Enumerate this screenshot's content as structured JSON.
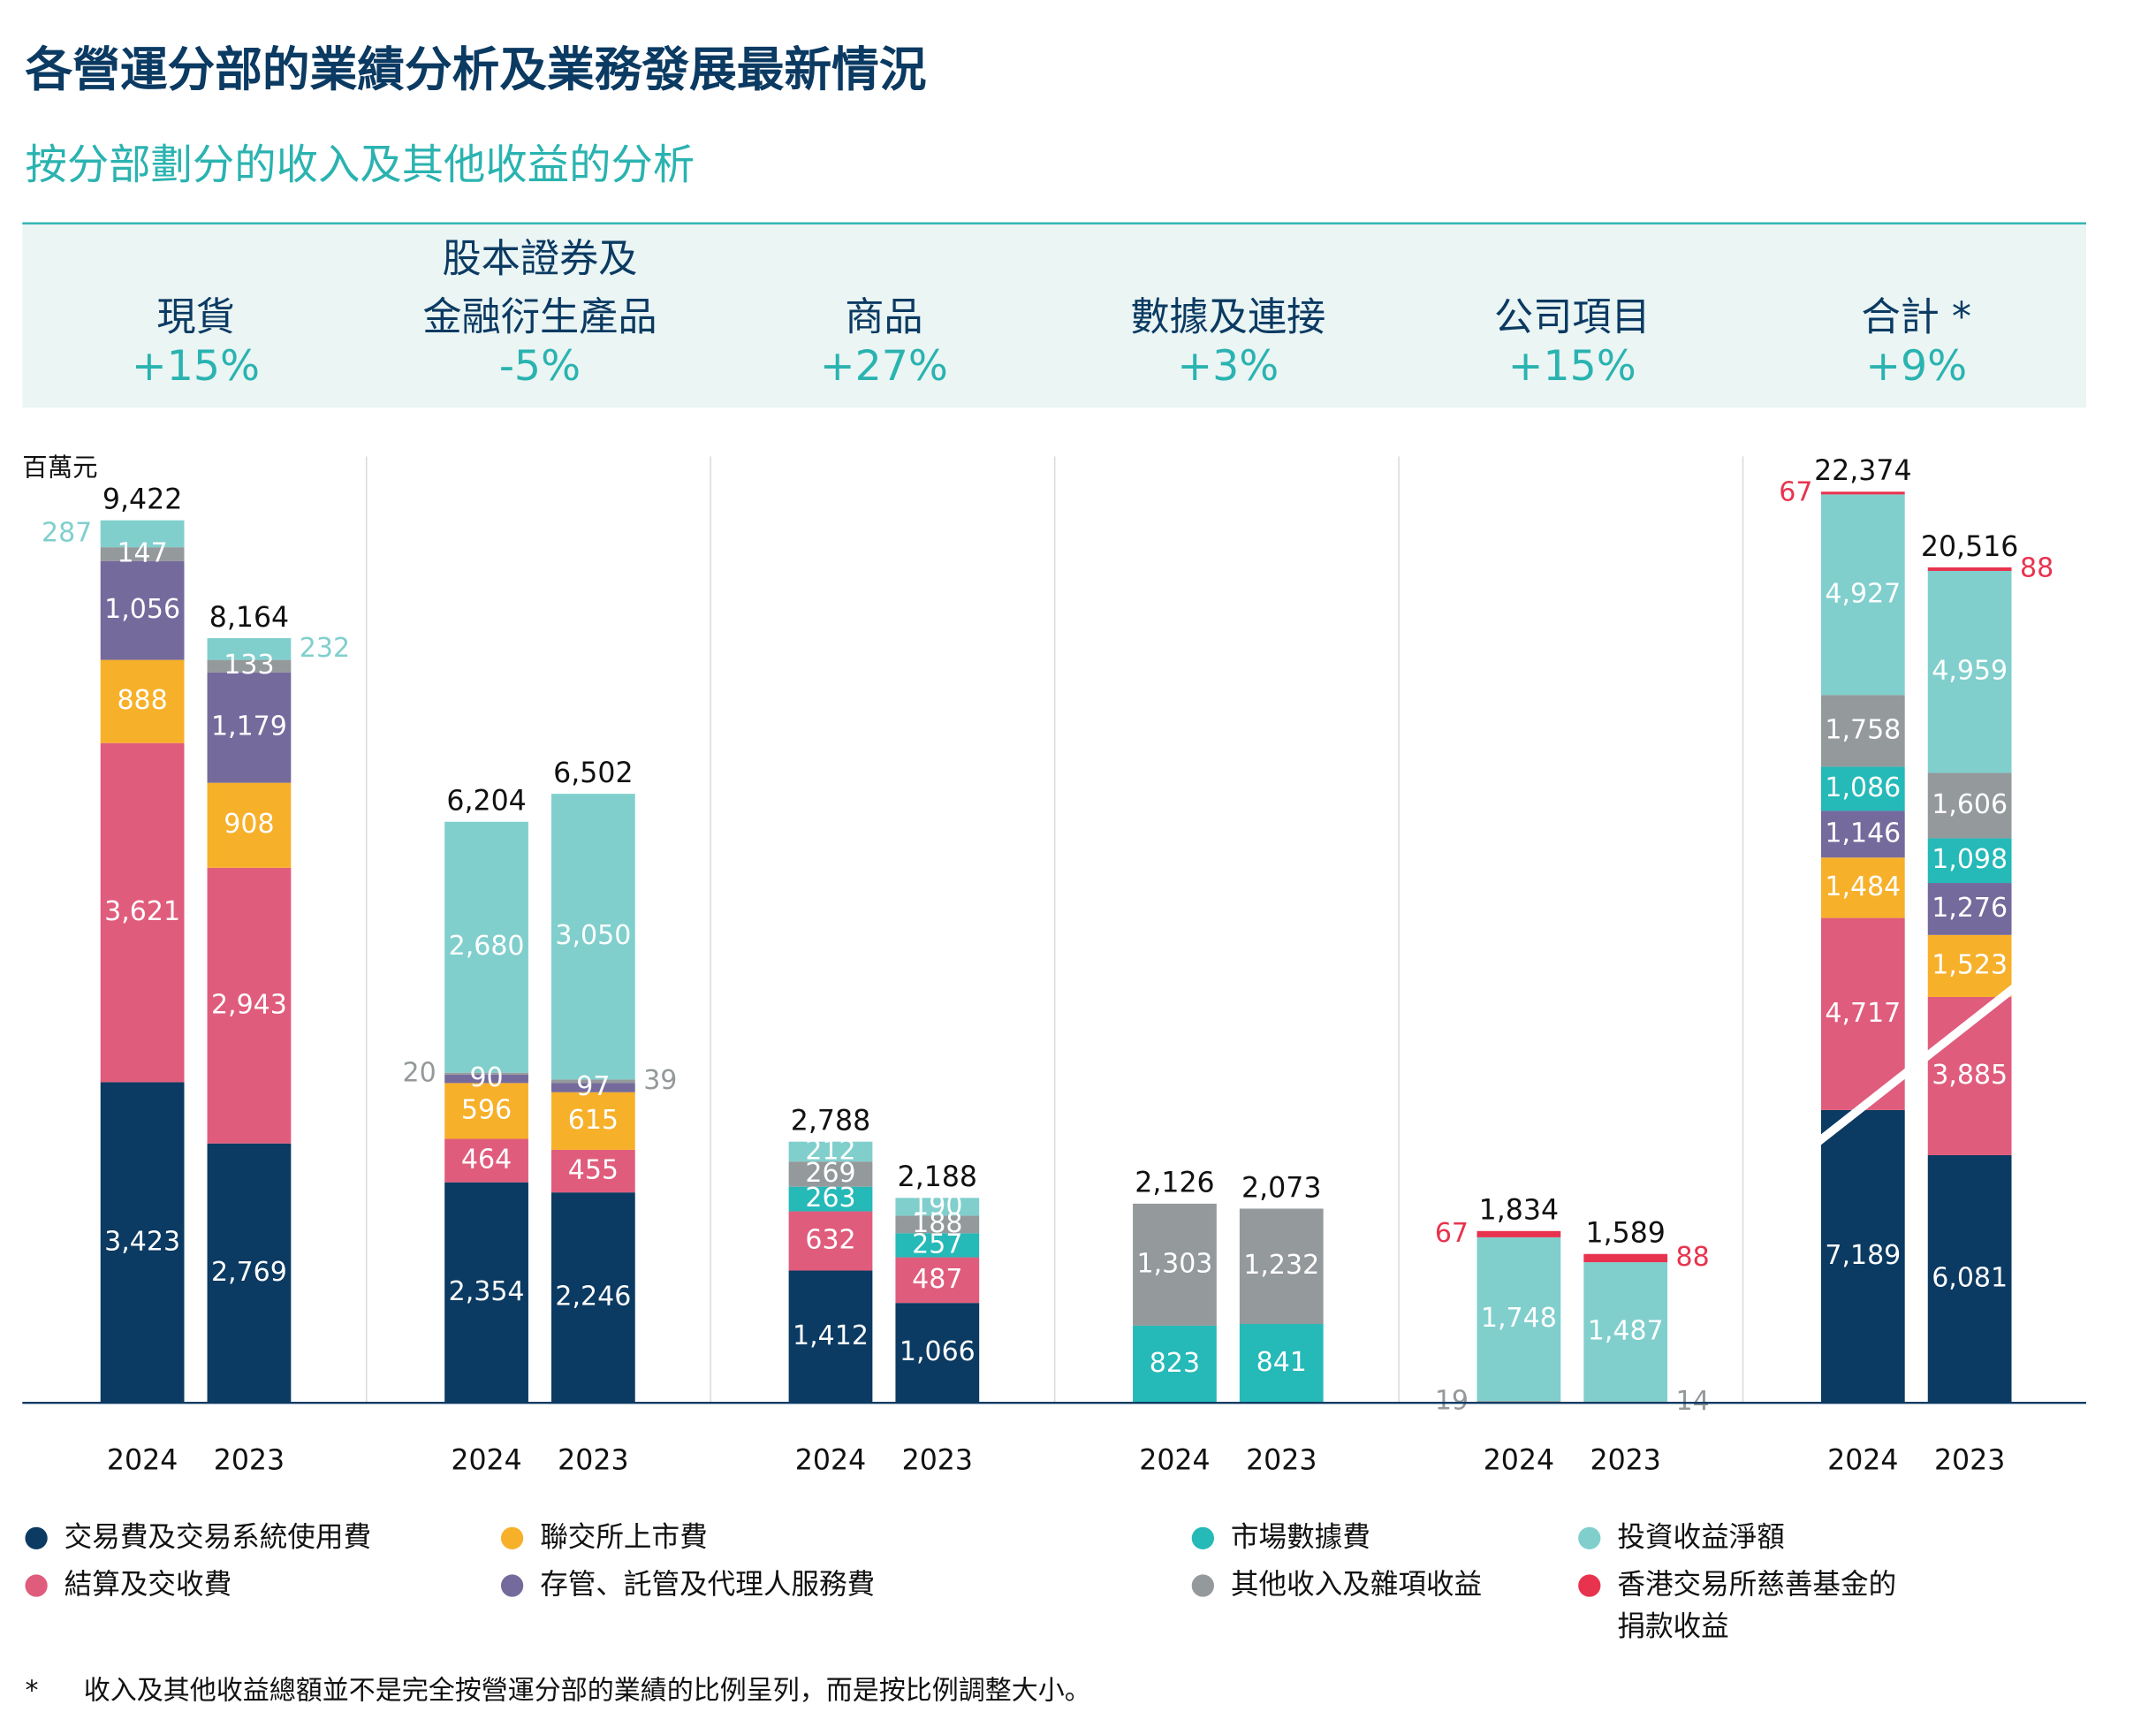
{
  "chart_data": {
    "type": "bar",
    "stacked": true,
    "title": "各營運分部的業績分析及業務發展最新情況",
    "subtitle": "按分部劃分的收入及其他收益的分析",
    "unit": "百萬元",
    "footnote_mark": "*",
    "footnote": "收入及其他收益總額並不是完全按營運分部的業績的比例呈列，而是按比例調整大小。",
    "series": [
      {
        "name": "交易費及交易系統使用費",
        "color": "#0b3a62"
      },
      {
        "name": "結算及交收費",
        "color": "#e05c7c"
      },
      {
        "name": "聯交所上市費",
        "color": "#f7b02a"
      },
      {
        "name": "存管、託管及代理人服務費",
        "color": "#756a9c"
      },
      {
        "name": "市場數據費",
        "color": "#25b9b8"
      },
      {
        "name": "其他收入及雜項收益",
        "color": "#94999b"
      },
      {
        "name": "投資收益淨額",
        "color": "#80cfcd"
      },
      {
        "name": "香港交易所慈善基金的捐款收益",
        "color": "#e8334f"
      }
    ],
    "panels": [
      {
        "title": [
          "現貨"
        ],
        "change": "+15%",
        "categories": [
          "2024",
          "2023"
        ],
        "ylim": [
          0,
          10000
        ],
        "totals": [
          9422,
          8164
        ],
        "total_labels": [
          "9,422",
          "8,164"
        ],
        "series": [
          {
            "values": [
              3423,
              2769
            ],
            "value_labels": [
              "3,423",
              "2,769"
            ]
          },
          {
            "values": [
              3621,
              2943
            ],
            "value_labels": [
              "3,621",
              "2,943"
            ]
          },
          {
            "values": [
              888,
              908
            ],
            "value_labels": [
              "888",
              "908"
            ]
          },
          {
            "values": [
              1056,
              1179
            ],
            "value_labels": [
              "1,056",
              "1,179"
            ]
          },
          {
            "values": [
              null,
              null
            ],
            "value_labels": [
              null,
              null
            ]
          },
          {
            "values": [
              147,
              133
            ],
            "value_labels": [
              "147",
              "133"
            ]
          },
          {
            "values": [
              287,
              232
            ],
            "value_labels": [
              "287",
              "232"
            ]
          },
          {
            "values": [
              null,
              null
            ],
            "value_labels": [
              null,
              null
            ]
          }
        ]
      },
      {
        "title": [
          "股本證券及",
          "金融衍生產品"
        ],
        "change": "-5%",
        "categories": [
          "2024",
          "2023"
        ],
        "ylim": [
          0,
          10000
        ],
        "totals": [
          6204,
          6502
        ],
        "total_labels": [
          "6,204",
          "6,502"
        ],
        "series": [
          {
            "values": [
              2354,
              2246
            ],
            "value_labels": [
              "2,354",
              "2,246"
            ]
          },
          {
            "values": [
              464,
              455
            ],
            "value_labels": [
              "464",
              "455"
            ]
          },
          {
            "values": [
              596,
              615
            ],
            "value_labels": [
              "596",
              "615"
            ]
          },
          {
            "values": [
              90,
              97
            ],
            "value_labels": [
              "90",
              "97"
            ]
          },
          {
            "values": [
              null,
              null
            ],
            "value_labels": [
              null,
              null
            ]
          },
          {
            "values": [
              20,
              39
            ],
            "value_labels": [
              "20",
              "39"
            ]
          },
          {
            "values": [
              2680,
              3050
            ],
            "value_labels": [
              "2,680",
              "3,050"
            ]
          },
          {
            "values": [
              null,
              null
            ],
            "value_labels": [
              null,
              null
            ]
          }
        ]
      },
      {
        "title": [
          "商品"
        ],
        "change": "+27%",
        "categories": [
          "2024",
          "2023"
        ],
        "ylim": [
          0,
          10000
        ],
        "totals": [
          2788,
          2188
        ],
        "total_labels": [
          "2,788",
          "2,188"
        ],
        "series": [
          {
            "values": [
              1412,
              1066
            ],
            "value_labels": [
              "1,412",
              "1,066"
            ]
          },
          {
            "values": [
              632,
              487
            ],
            "value_labels": [
              "632",
              "487"
            ]
          },
          {
            "values": [
              null,
              null
            ],
            "value_labels": [
              null,
              null
            ]
          },
          {
            "values": [
              null,
              null
            ],
            "value_labels": [
              null,
              null
            ]
          },
          {
            "values": [
              263,
              257
            ],
            "value_labels": [
              "263",
              "257"
            ]
          },
          {
            "values": [
              269,
              188
            ],
            "value_labels": [
              "269",
              "188"
            ]
          },
          {
            "values": [
              212,
              190
            ],
            "value_labels": [
              "212",
              "190"
            ]
          },
          {
            "values": [
              null,
              null
            ],
            "value_labels": [
              null,
              null
            ]
          }
        ]
      },
      {
        "title": [
          "數據及連接"
        ],
        "change": "+3%",
        "categories": [
          "2024",
          "2023"
        ],
        "ylim": [
          0,
          10000
        ],
        "totals": [
          2126,
          2073
        ],
        "total_labels": [
          "2,126",
          "2,073"
        ],
        "series": [
          {
            "values": [
              null,
              null
            ],
            "value_labels": [
              null,
              null
            ]
          },
          {
            "values": [
              null,
              null
            ],
            "value_labels": [
              null,
              null
            ]
          },
          {
            "values": [
              null,
              null
            ],
            "value_labels": [
              null,
              null
            ]
          },
          {
            "values": [
              null,
              null
            ],
            "value_labels": [
              null,
              null
            ]
          },
          {
            "values": [
              823,
              841
            ],
            "value_labels": [
              "823",
              "841"
            ]
          },
          {
            "values": [
              1303,
              1232
            ],
            "value_labels": [
              "1,303",
              "1,232"
            ]
          },
          {
            "values": [
              null,
              null
            ],
            "value_labels": [
              null,
              null
            ]
          },
          {
            "values": [
              null,
              null
            ],
            "value_labels": [
              null,
              null
            ]
          }
        ]
      },
      {
        "title": [
          "公司項目"
        ],
        "change": "+15%",
        "categories": [
          "2024",
          "2023"
        ],
        "ylim": [
          0,
          10000
        ],
        "totals": [
          1834,
          1589
        ],
        "total_labels": [
          "1,834",
          "1,589"
        ],
        "series": [
          {
            "values": [
              null,
              null
            ],
            "value_labels": [
              null,
              null
            ]
          },
          {
            "values": [
              null,
              null
            ],
            "value_labels": [
              null,
              null
            ]
          },
          {
            "values": [
              null,
              null
            ],
            "value_labels": [
              null,
              null
            ]
          },
          {
            "values": [
              null,
              null
            ],
            "value_labels": [
              null,
              null
            ]
          },
          {
            "values": [
              null,
              null
            ],
            "value_labels": [
              null,
              null
            ]
          },
          {
            "values": [
              19,
              14
            ],
            "value_labels": [
              "19",
              "14"
            ]
          },
          {
            "values": [
              1748,
              1487
            ],
            "value_labels": [
              "1,748",
              "1,487"
            ]
          },
          {
            "values": [
              67,
              88
            ],
            "value_labels": [
              "67",
              "88"
            ]
          }
        ]
      },
      {
        "title": [
          "合計 *"
        ],
        "change": "+9%",
        "categories": [
          "2024",
          "2023"
        ],
        "ylim": [
          0,
          23000
        ],
        "totals": [
          22374,
          20516
        ],
        "total_labels": [
          "22,374",
          "20,516"
        ],
        "series": [
          {
            "values": [
              7189,
              6081
            ],
            "value_labels": [
              "7,189",
              "6,081"
            ]
          },
          {
            "values": [
              4717,
              3885
            ],
            "value_labels": [
              "4,717",
              "3,885"
            ]
          },
          {
            "values": [
              1484,
              1523
            ],
            "value_labels": [
              "1,484",
              "1,523"
            ]
          },
          {
            "values": [
              1146,
              1276
            ],
            "value_labels": [
              "1,146",
              "1,276"
            ]
          },
          {
            "values": [
              1086,
              1098
            ],
            "value_labels": [
              "1,086",
              "1,098"
            ]
          },
          {
            "values": [
              1758,
              1606
            ],
            "value_labels": [
              "1,758",
              "1,606"
            ]
          },
          {
            "values": [
              4927,
              4959
            ],
            "value_labels": [
              "4,927",
              "4,959"
            ]
          },
          {
            "values": [
              67,
              88
            ],
            "value_labels": [
              "67",
              "88"
            ]
          }
        ]
      }
    ]
  }
}
